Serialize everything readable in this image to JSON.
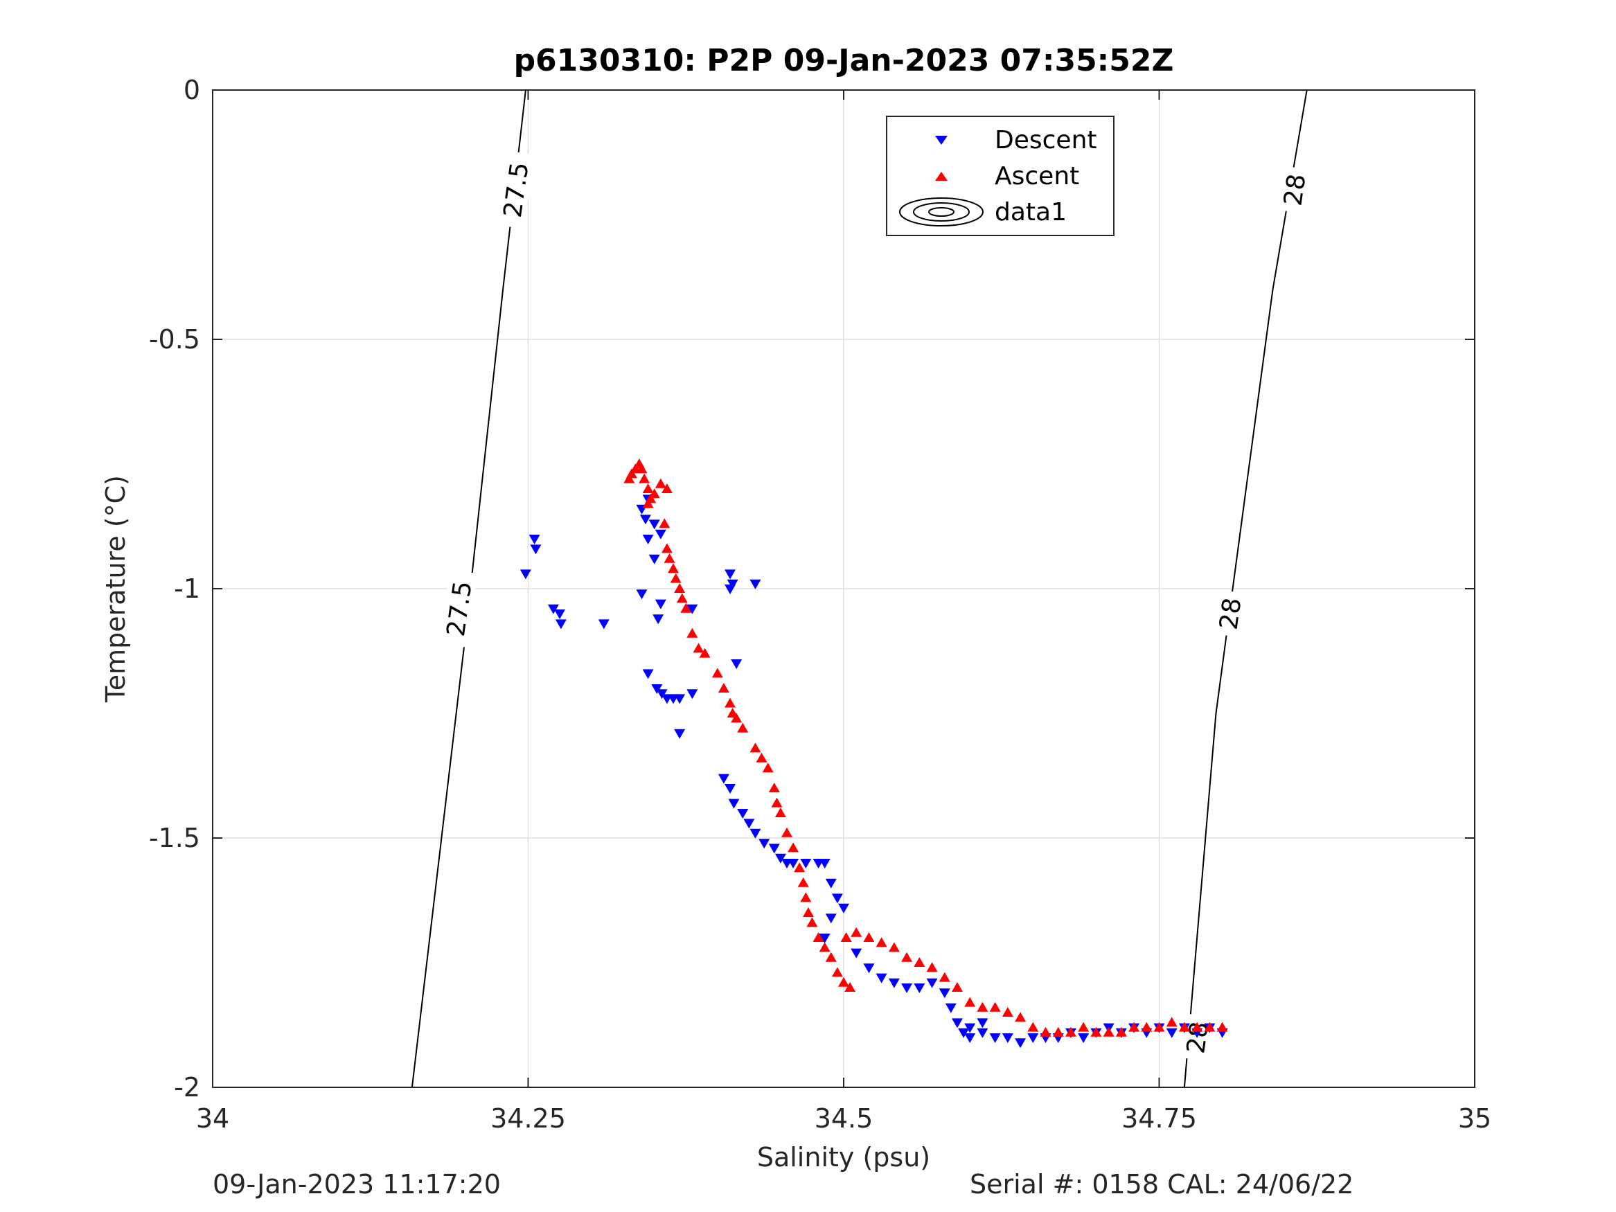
{
  "chart_data": {
    "type": "scatter",
    "title": "p6130310: P2P 09-Jan-2023 07:35:52Z",
    "xlabel": "Salinity (psu)",
    "ylabel": "Temperature (°C)",
    "xlim": [
      34,
      35
    ],
    "ylim": [
      -2,
      0
    ],
    "xticks": [
      34,
      34.25,
      34.5,
      34.75,
      35
    ],
    "xtick_labels": [
      "34",
      "34.25",
      "34.5",
      "34.75",
      "35"
    ],
    "yticks": [
      -2,
      -1.5,
      -1,
      -0.5,
      0
    ],
    "ytick_labels": [
      "-2",
      "-1.5",
      "-1",
      "-0.5",
      "0"
    ],
    "grid": true,
    "legend": {
      "placement": "top-center",
      "entries": [
        "Descent",
        "Ascent",
        "data1"
      ]
    },
    "contours": [
      {
        "level": "27.5",
        "points": [
          [
            34.158,
            -2.0
          ],
          [
            34.2,
            -1.1
          ],
          [
            34.23,
            -0.4
          ],
          [
            34.248,
            0.0
          ]
        ],
        "labels": [
          {
            "text": "27.5",
            "x": 34.195,
            "y": -1.04
          },
          {
            "text": "27.5",
            "x": 34.24,
            "y": -0.2
          }
        ]
      },
      {
        "level": "28",
        "points": [
          [
            34.77,
            -2.0
          ],
          [
            34.795,
            -1.25
          ],
          [
            34.84,
            -0.4
          ],
          [
            34.867,
            0.0
          ]
        ],
        "labels": [
          {
            "text": "28",
            "x": 34.78,
            "y": -1.9
          },
          {
            "text": "28",
            "x": 34.806,
            "y": -1.05
          },
          {
            "text": "28",
            "x": 34.857,
            "y": -0.2
          }
        ]
      }
    ],
    "series": [
      {
        "name": "Descent",
        "color": "#0000ff",
        "marker": "triangle-down",
        "points": [
          [
            34.255,
            -0.9
          ],
          [
            34.256,
            -0.92
          ],
          [
            34.248,
            -0.97
          ],
          [
            34.27,
            -1.04
          ],
          [
            34.275,
            -1.05
          ],
          [
            34.276,
            -1.07
          ],
          [
            34.31,
            -1.07
          ],
          [
            34.34,
            -0.84
          ],
          [
            34.345,
            -0.82
          ],
          [
            34.343,
            -0.86
          ],
          [
            34.35,
            -0.87
          ],
          [
            34.355,
            -0.89
          ],
          [
            34.345,
            -0.9
          ],
          [
            34.35,
            -0.94
          ],
          [
            34.34,
            -1.01
          ],
          [
            34.355,
            -1.03
          ],
          [
            34.353,
            -1.06
          ],
          [
            34.345,
            -1.17
          ],
          [
            34.352,
            -1.2
          ],
          [
            34.356,
            -1.21
          ],
          [
            34.36,
            -1.22
          ],
          [
            34.365,
            -1.22
          ],
          [
            34.37,
            -1.22
          ],
          [
            34.37,
            -1.29
          ],
          [
            34.38,
            -1.21
          ],
          [
            34.38,
            -1.04
          ],
          [
            34.41,
            -0.97
          ],
          [
            34.412,
            -0.99
          ],
          [
            34.41,
            -1.0
          ],
          [
            34.43,
            -0.99
          ],
          [
            34.415,
            -1.15
          ],
          [
            34.405,
            -1.38
          ],
          [
            34.41,
            -1.4
          ],
          [
            34.413,
            -1.43
          ],
          [
            34.42,
            -1.45
          ],
          [
            34.425,
            -1.47
          ],
          [
            34.43,
            -1.49
          ],
          [
            34.437,
            -1.51
          ],
          [
            34.445,
            -1.52
          ],
          [
            34.45,
            -1.54
          ],
          [
            34.455,
            -1.55
          ],
          [
            34.46,
            -1.55
          ],
          [
            34.47,
            -1.55
          ],
          [
            34.48,
            -1.55
          ],
          [
            34.485,
            -1.55
          ],
          [
            34.49,
            -1.59
          ],
          [
            34.495,
            -1.62
          ],
          [
            34.5,
            -1.64
          ],
          [
            34.49,
            -1.66
          ],
          [
            34.485,
            -1.7
          ],
          [
            34.51,
            -1.73
          ],
          [
            34.52,
            -1.76
          ],
          [
            34.53,
            -1.78
          ],
          [
            34.54,
            -1.79
          ],
          [
            34.55,
            -1.8
          ],
          [
            34.56,
            -1.8
          ],
          [
            34.57,
            -1.79
          ],
          [
            34.58,
            -1.81
          ],
          [
            34.585,
            -1.84
          ],
          [
            34.59,
            -1.87
          ],
          [
            34.6,
            -1.88
          ],
          [
            34.61,
            -1.87
          ],
          [
            34.595,
            -1.89
          ],
          [
            34.6,
            -1.9
          ],
          [
            34.61,
            -1.89
          ],
          [
            34.62,
            -1.9
          ],
          [
            34.63,
            -1.9
          ],
          [
            34.64,
            -1.91
          ],
          [
            34.65,
            -1.9
          ],
          [
            34.66,
            -1.9
          ],
          [
            34.67,
            -1.9
          ],
          [
            34.68,
            -1.89
          ],
          [
            34.69,
            -1.9
          ],
          [
            34.7,
            -1.89
          ],
          [
            34.71,
            -1.88
          ],
          [
            34.72,
            -1.89
          ],
          [
            34.73,
            -1.88
          ],
          [
            34.74,
            -1.89
          ],
          [
            34.75,
            -1.88
          ],
          [
            34.76,
            -1.89
          ],
          [
            34.77,
            -1.88
          ],
          [
            34.78,
            -1.89
          ],
          [
            34.79,
            -1.88
          ],
          [
            34.8,
            -1.89
          ]
        ]
      },
      {
        "name": "Ascent",
        "color": "#ff0000",
        "marker": "triangle-up",
        "points": [
          [
            34.33,
            -0.78
          ],
          [
            34.332,
            -0.77
          ],
          [
            34.335,
            -0.76
          ],
          [
            34.338,
            -0.75
          ],
          [
            34.34,
            -0.76
          ],
          [
            34.342,
            -0.78
          ],
          [
            34.345,
            -0.8
          ],
          [
            34.347,
            -0.82
          ],
          [
            34.35,
            -0.81
          ],
          [
            34.355,
            -0.79
          ],
          [
            34.36,
            -0.8
          ],
          [
            34.345,
            -0.83
          ],
          [
            34.358,
            -0.87
          ],
          [
            34.36,
            -0.92
          ],
          [
            34.362,
            -0.94
          ],
          [
            34.365,
            -0.96
          ],
          [
            34.367,
            -0.98
          ],
          [
            34.37,
            -1.0
          ],
          [
            34.372,
            -1.02
          ],
          [
            34.375,
            -1.04
          ],
          [
            34.38,
            -1.09
          ],
          [
            34.385,
            -1.12
          ],
          [
            34.39,
            -1.13
          ],
          [
            34.4,
            -1.17
          ],
          [
            34.405,
            -1.2
          ],
          [
            34.41,
            -1.23
          ],
          [
            34.412,
            -1.25
          ],
          [
            34.415,
            -1.26
          ],
          [
            34.42,
            -1.28
          ],
          [
            34.43,
            -1.32
          ],
          [
            34.435,
            -1.34
          ],
          [
            34.44,
            -1.36
          ],
          [
            34.445,
            -1.4
          ],
          [
            34.447,
            -1.43
          ],
          [
            34.45,
            -1.45
          ],
          [
            34.455,
            -1.49
          ],
          [
            34.46,
            -1.52
          ],
          [
            34.465,
            -1.56
          ],
          [
            34.468,
            -1.59
          ],
          [
            34.47,
            -1.62
          ],
          [
            34.472,
            -1.65
          ],
          [
            34.475,
            -1.67
          ],
          [
            34.48,
            -1.7
          ],
          [
            34.485,
            -1.72
          ],
          [
            34.49,
            -1.74
          ],
          [
            34.495,
            -1.77
          ],
          [
            34.5,
            -1.79
          ],
          [
            34.505,
            -1.8
          ],
          [
            34.502,
            -1.7
          ],
          [
            34.51,
            -1.69
          ],
          [
            34.52,
            -1.7
          ],
          [
            34.53,
            -1.71
          ],
          [
            34.54,
            -1.72
          ],
          [
            34.55,
            -1.74
          ],
          [
            34.56,
            -1.75
          ],
          [
            34.57,
            -1.76
          ],
          [
            34.58,
            -1.78
          ],
          [
            34.59,
            -1.8
          ],
          [
            34.6,
            -1.83
          ],
          [
            34.61,
            -1.84
          ],
          [
            34.62,
            -1.84
          ],
          [
            34.63,
            -1.85
          ],
          [
            34.64,
            -1.86
          ],
          [
            34.65,
            -1.88
          ],
          [
            34.66,
            -1.89
          ],
          [
            34.67,
            -1.89
          ],
          [
            34.68,
            -1.89
          ],
          [
            34.69,
            -1.88
          ],
          [
            34.7,
            -1.89
          ],
          [
            34.71,
            -1.89
          ],
          [
            34.72,
            -1.89
          ],
          [
            34.73,
            -1.88
          ],
          [
            34.74,
            -1.88
          ],
          [
            34.75,
            -1.88
          ],
          [
            34.76,
            -1.87
          ],
          [
            34.77,
            -1.88
          ],
          [
            34.78,
            -1.88
          ],
          [
            34.79,
            -1.88
          ],
          [
            34.8,
            -1.88
          ]
        ]
      }
    ]
  },
  "footer": {
    "left": "09-Jan-2023 11:17:20",
    "right": "Serial #: 0158  CAL: 24/06/22"
  },
  "colors": {
    "axis": "#262626",
    "grid": "#dfdfdf"
  }
}
